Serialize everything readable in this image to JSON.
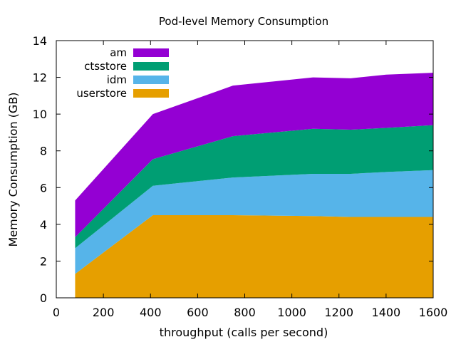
{
  "chart_data": {
    "type": "area",
    "stacked": true,
    "title": "Pod-level Memory Consumption",
    "xlabel": "throughput (calls per second)",
    "ylabel": "Memory Consumption (GB)",
    "xlim": [
      0,
      1600
    ],
    "ylim": [
      0,
      14
    ],
    "xticks": [
      0,
      200,
      400,
      600,
      800,
      1000,
      1200,
      1400,
      1600
    ],
    "yticks": [
      0,
      2,
      4,
      6,
      8,
      10,
      12,
      14
    ],
    "grid": false,
    "legend_position": "top-left",
    "x": [
      80,
      410,
      750,
      1090,
      1250,
      1400,
      1600
    ],
    "series": [
      {
        "name": "userstore",
        "color": "#e69f00",
        "values": [
          1.3,
          4.5,
          4.5,
          4.45,
          4.4,
          4.4,
          4.4
        ]
      },
      {
        "name": "idm",
        "color": "#56b4e9",
        "values": [
          1.4,
          1.6,
          2.05,
          2.3,
          2.35,
          2.45,
          2.55
        ]
      },
      {
        "name": "ctsstore",
        "color": "#009e73",
        "values": [
          0.6,
          1.45,
          2.25,
          2.45,
          2.4,
          2.4,
          2.45
        ]
      },
      {
        "name": "am",
        "color": "#9400d3",
        "values": [
          2.0,
          2.45,
          2.75,
          2.8,
          2.8,
          2.9,
          2.85
        ]
      }
    ],
    "legend_order": [
      "am",
      "ctsstore",
      "idm",
      "userstore"
    ]
  }
}
